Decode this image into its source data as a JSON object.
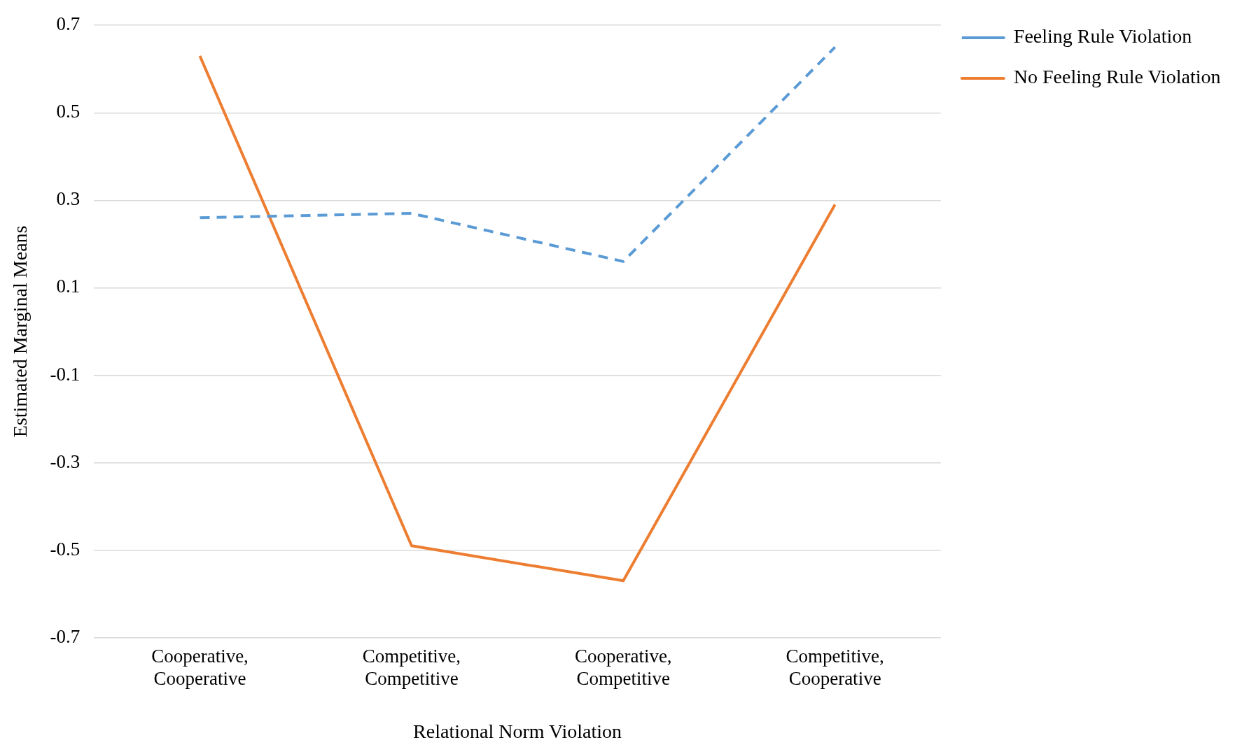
{
  "chart_data": {
    "type": "line",
    "xlabel": "Relational Norm Violation",
    "ylabel": "Estimated Marginal Means",
    "categories": [
      "Cooperative, Cooperative",
      "Competitive, Competitive",
      "Cooperative, Competitive",
      "Competitive, Cooperative"
    ],
    "series": [
      {
        "name": "Feeling Rule Violation",
        "color": "#5b9bd5",
        "values": [
          0.26,
          0.27,
          0.16,
          0.65
        ],
        "line_style": "dashed"
      },
      {
        "name": "No Feeling Rule Violation",
        "color": "#ed7d31",
        "values": [
          0.63,
          -0.49,
          -0.57,
          0.29
        ],
        "line_style": "solid"
      }
    ],
    "ylim": [
      -0.7,
      0.7
    ],
    "yticks": [
      -0.7,
      -0.5,
      -0.3,
      -0.1,
      0.1,
      0.3,
      0.5,
      0.7
    ],
    "grid": "y",
    "legend": "right",
    "marker": "none"
  }
}
